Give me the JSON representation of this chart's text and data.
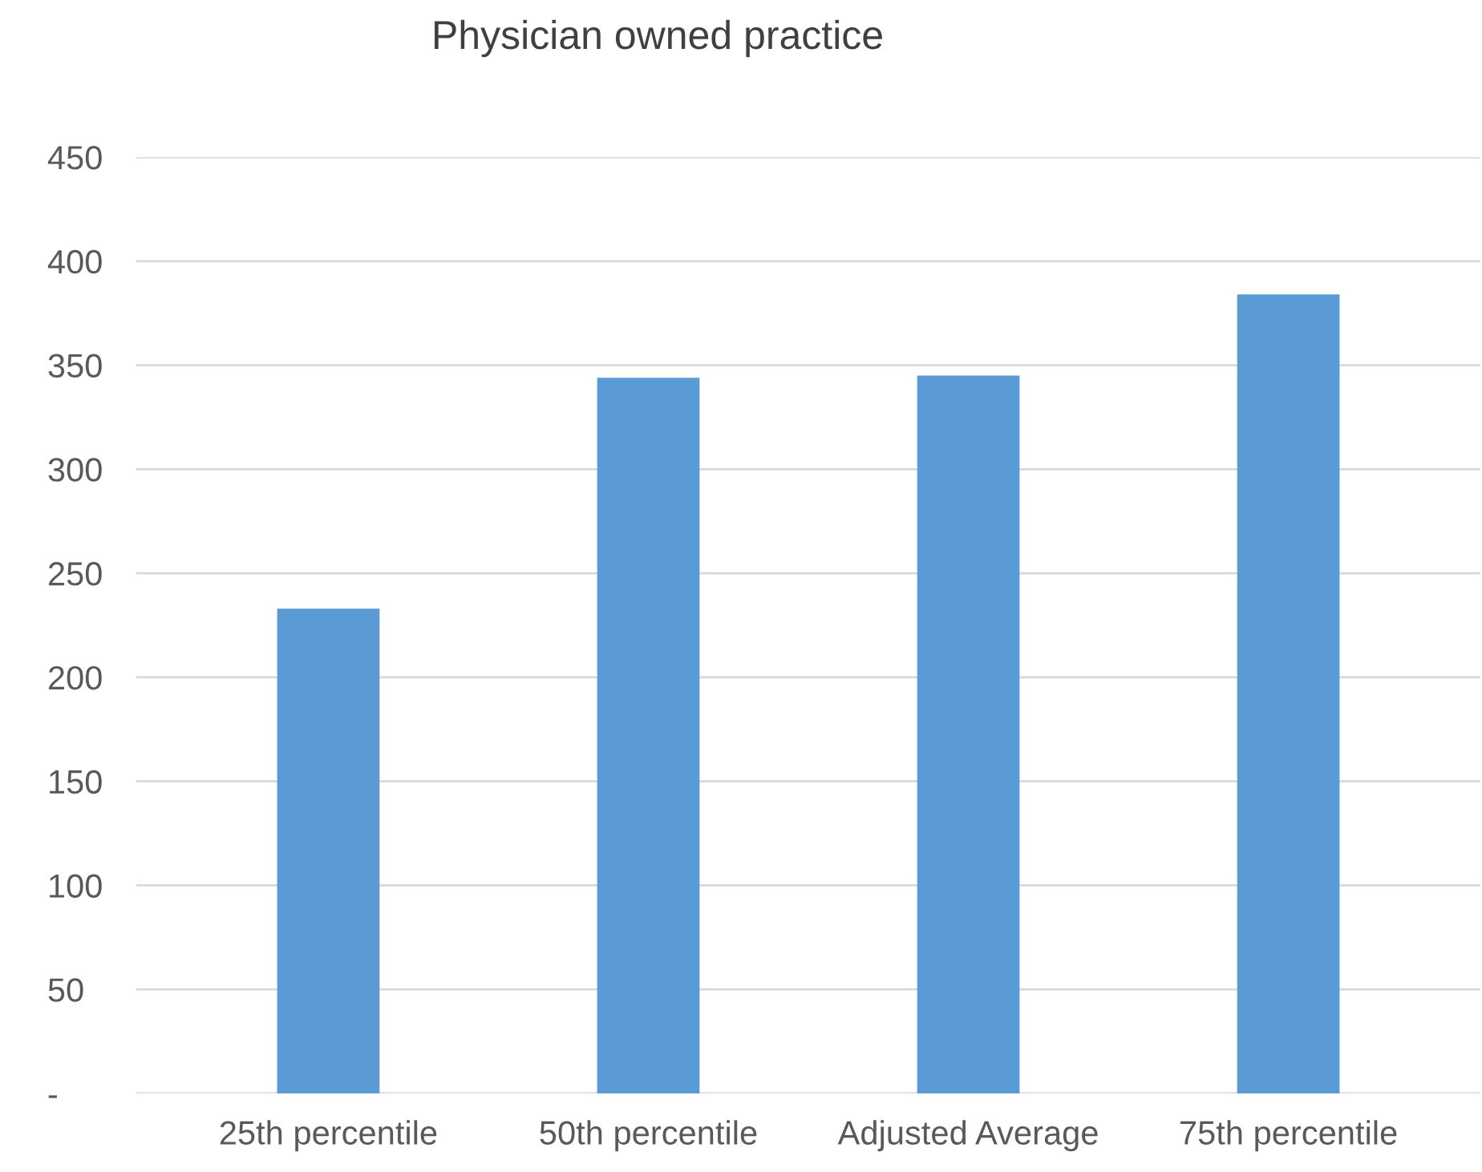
{
  "chart_data": {
    "type": "bar",
    "title": "Physician owned practice",
    "categories": [
      "25th percentile",
      "50th percentile",
      "Adjusted Average",
      "75th percentile"
    ],
    "values": [
      233,
      344,
      345,
      384
    ],
    "color": "#5b9bd5",
    "ylim": [
      0,
      450
    ],
    "yticks": [
      {
        "value": 0,
        "label": "-"
      },
      50,
      100,
      150,
      200,
      250,
      300,
      350,
      400,
      450
    ],
    "grid": "y",
    "legend": false
  }
}
